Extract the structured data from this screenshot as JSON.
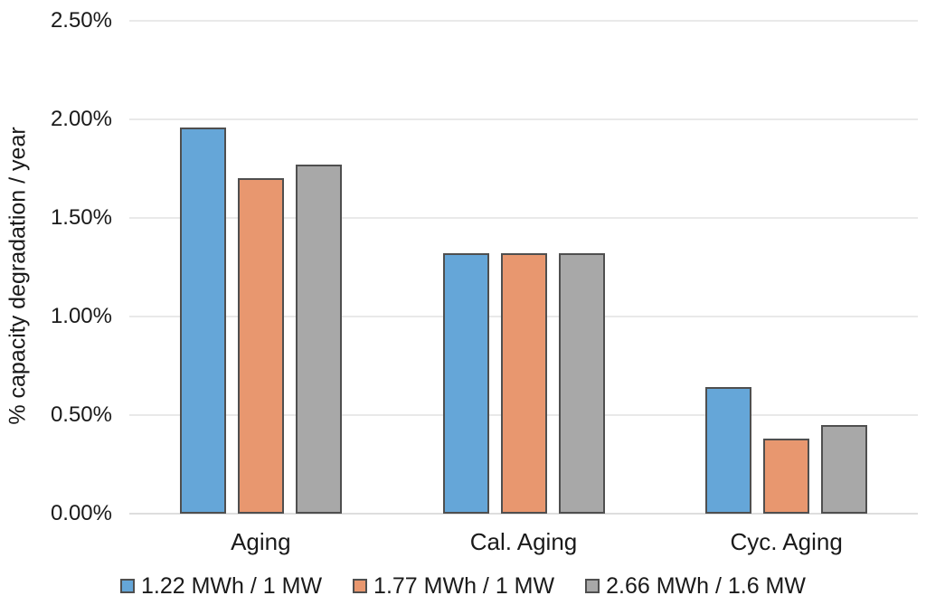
{
  "chart_data": {
    "type": "bar",
    "title": "",
    "xlabel": "",
    "ylabel": "% capacity degradation / year",
    "categories": [
      "Aging",
      "Cal. Aging",
      "Cyc. Aging"
    ],
    "series": [
      {
        "name": "1.22 MWh / 1 MW",
        "color": "#65a6d8",
        "values": [
          1.96,
          1.32,
          0.64
        ]
      },
      {
        "name": "1.77 MWh / 1 MW",
        "color": "#e8976f",
        "values": [
          1.7,
          1.32,
          0.38
        ]
      },
      {
        "name": "2.66 MWh / 1.6 MW",
        "color": "#a8a8a8",
        "values": [
          1.77,
          1.32,
          0.45
        ]
      }
    ],
    "ylim": [
      0,
      2.5
    ],
    "ytick_step": 0.5,
    "ytick_labels": [
      "0.00%",
      "0.50%",
      "1.00%",
      "1.50%",
      "2.00%",
      "2.50%"
    ],
    "grid": "horizontal",
    "legend_position": "bottom",
    "bar_border_color": "#4f4f4f"
  }
}
